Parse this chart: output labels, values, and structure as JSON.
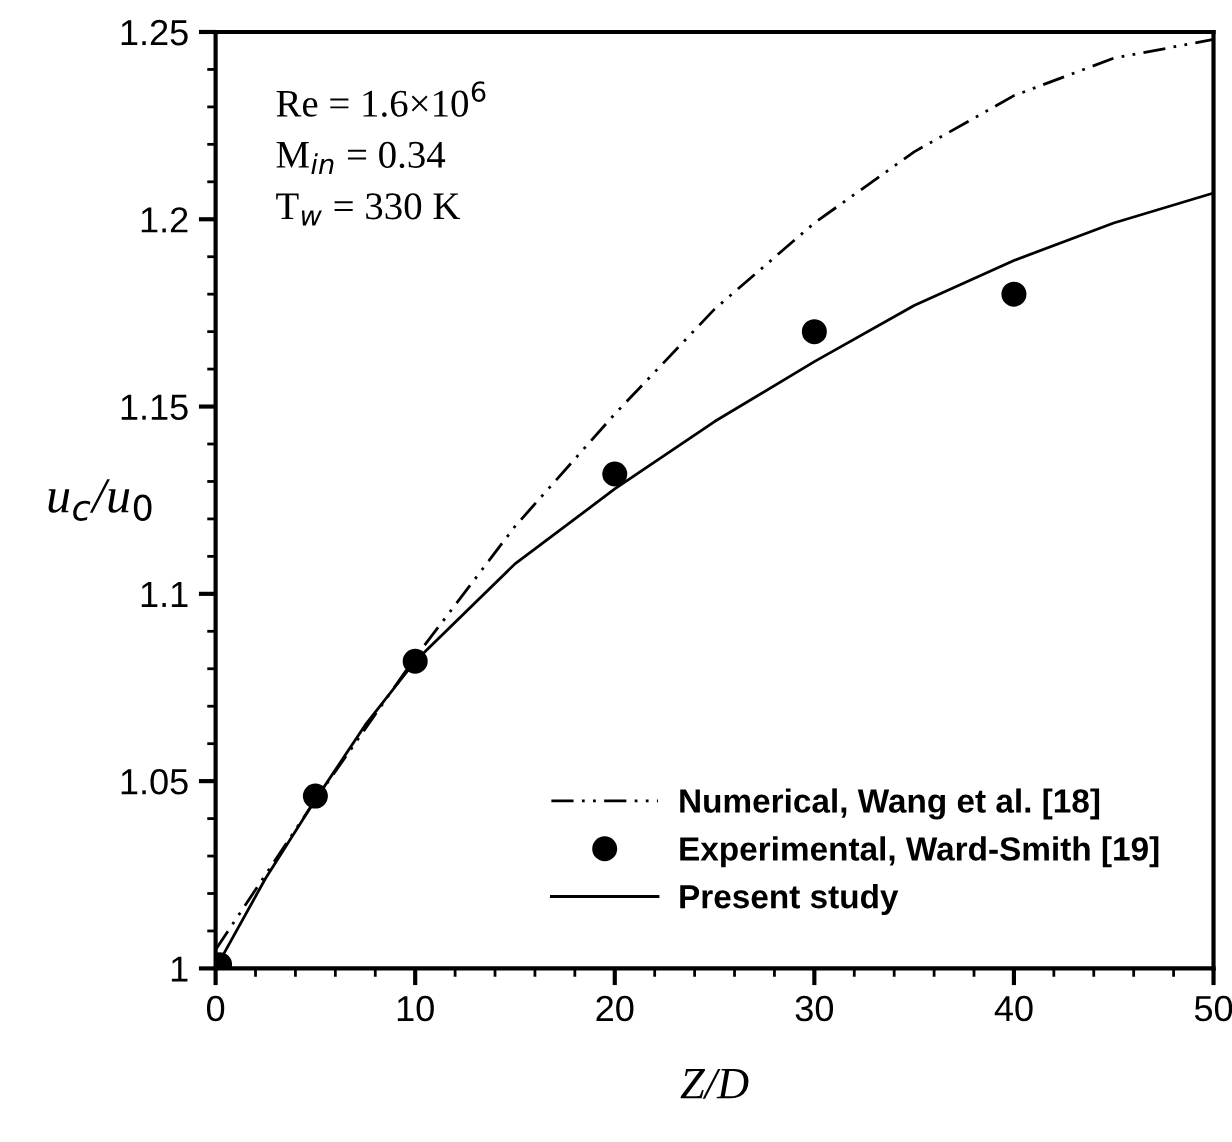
{
  "chart_data": {
    "type": "line",
    "xlabel": "Z/D",
    "ylabel": "u$_{c}$/u$_{0}$",
    "xlim": [
      0,
      50
    ],
    "ylim": [
      1,
      1.25
    ],
    "xticks": [
      0,
      10,
      20,
      30,
      40,
      50
    ],
    "yticks": [
      1,
      1.05,
      1.1,
      1.15,
      1.2,
      1.25
    ],
    "grid": false,
    "legend": "bottom right",
    "annotations": [
      "Re = 1.6×10$^{6}$",
      "M$_{in}$ = 0.34",
      "T$_{w}$ = 330 K"
    ],
    "series": [
      {
        "name": "Numerical, Wang et al. [18]",
        "color": "#000000",
        "line_style": "dashed",
        "marker": "none",
        "x": [
          0,
          2.5,
          5,
          7.5,
          10,
          15,
          20,
          25,
          30,
          35,
          40,
          45,
          50
        ],
        "values": [
          1.005,
          1.025,
          1.045,
          1.064,
          1.083,
          1.118,
          1.148,
          1.176,
          1.199,
          1.218,
          1.233,
          1.243,
          1.248
        ]
      },
      {
        "name": "Experimental, Ward-Smith [19]",
        "type": "scatter",
        "color": "#000000",
        "marker": "circle",
        "x": [
          0.2,
          5,
          10,
          20,
          30,
          40
        ],
        "values": [
          1.001,
          1.046,
          1.082,
          1.132,
          1.17,
          1.18
        ]
      },
      {
        "name": "Present study",
        "color": "#000000",
        "line_style": "solid",
        "marker": "none",
        "x": [
          0,
          2.5,
          5,
          7.5,
          10,
          15,
          20,
          25,
          30,
          35,
          40,
          45,
          50
        ],
        "values": [
          1.0,
          1.024,
          1.045,
          1.065,
          1.082,
          1.108,
          1.128,
          1.146,
          1.162,
          1.177,
          1.189,
          1.199,
          1.207
        ]
      }
    ]
  }
}
